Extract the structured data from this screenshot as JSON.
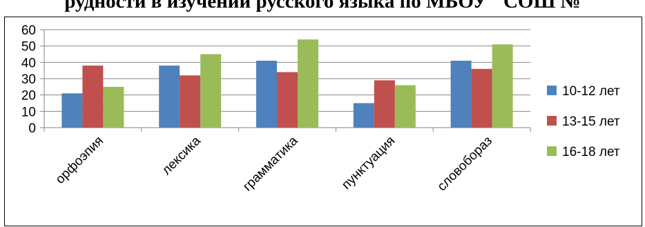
{
  "chart_data": {
    "type": "bar",
    "title": "рудности в изучении русского языка по МБОУ \"СОШ №",
    "categories": [
      "орфоэпия",
      "лексика",
      "грамматика",
      "пунктуация",
      "словобораз"
    ],
    "series": [
      {
        "name": "10-12 лет",
        "color": "#4F81BD",
        "values": [
          21,
          38,
          41,
          15,
          41
        ]
      },
      {
        "name": "13-15 лет",
        "color": "#C0504D",
        "values": [
          38,
          32,
          34,
          29,
          36
        ]
      },
      {
        "name": "16-18 лет",
        "color": "#9BBB59",
        "values": [
          25,
          45,
          54,
          26,
          51
        ]
      }
    ],
    "ylim": [
      0,
      60
    ],
    "yticks": [
      0,
      10,
      20,
      30,
      40,
      50,
      60
    ],
    "xlabel": "",
    "ylabel": "",
    "grid": true,
    "legend_position": "right"
  }
}
